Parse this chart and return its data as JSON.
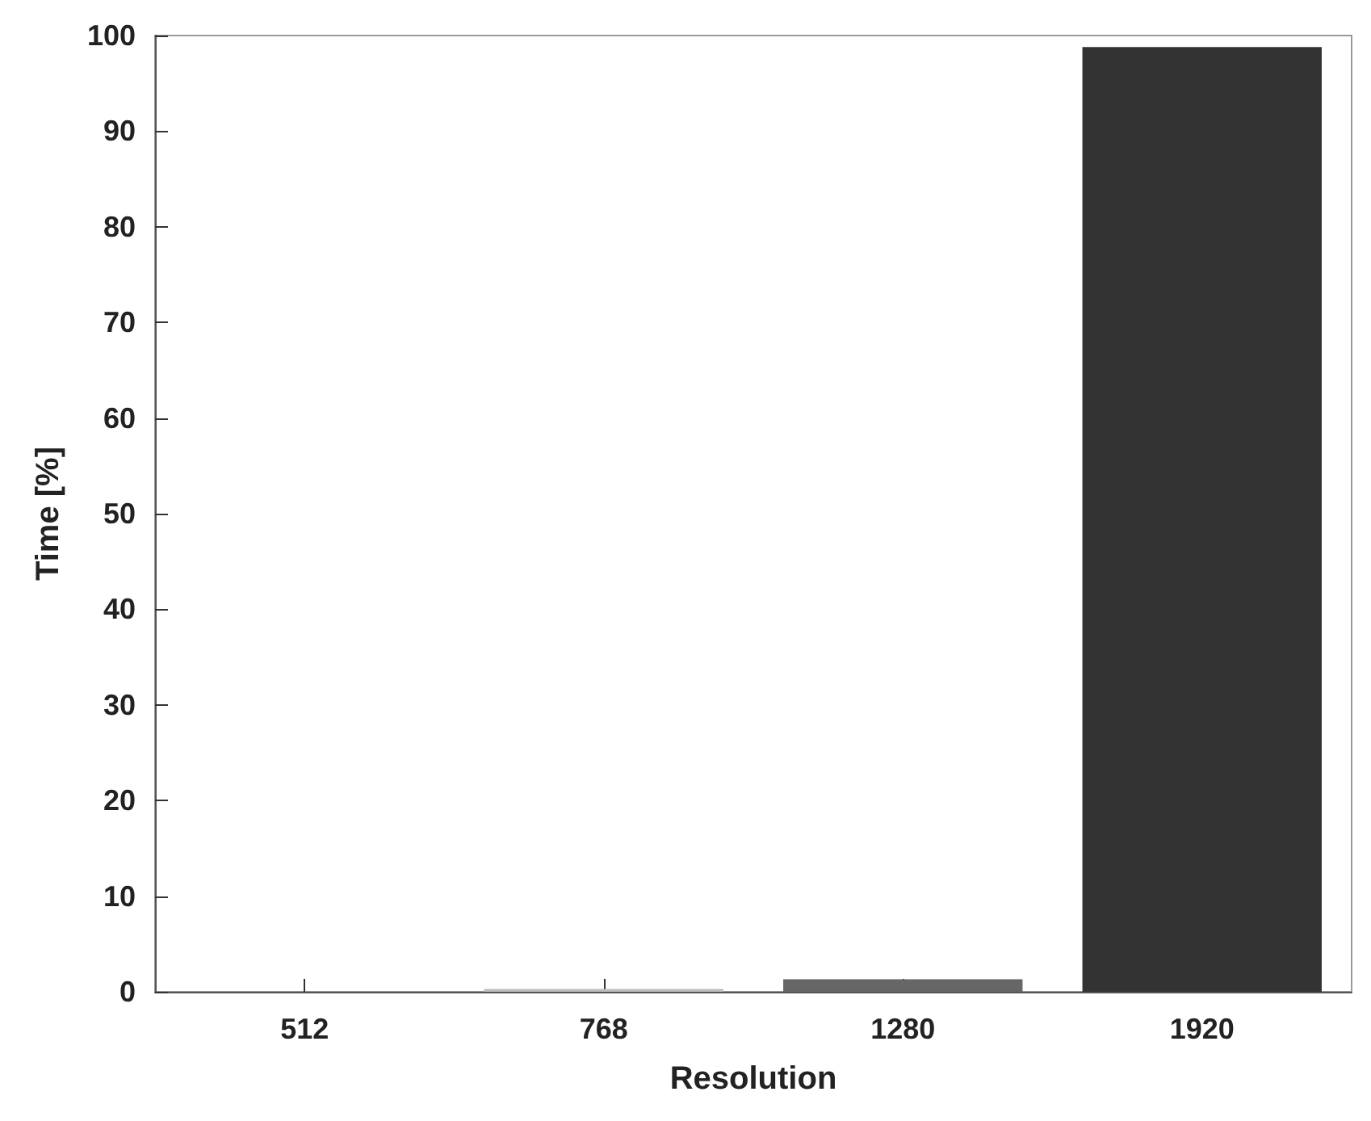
{
  "chart_data": {
    "type": "bar",
    "xlabel": "Resolution",
    "ylabel": "Time [%]",
    "categories": [
      "512",
      "768",
      "1280",
      "1920"
    ],
    "values": [
      0,
      0.3,
      1.3,
      98.8
    ],
    "colors": [
      "#1a1a1a",
      "#bdbdbd",
      "#666666",
      "#333333"
    ],
    "ylim": [
      0,
      100
    ],
    "yticks": [
      0,
      10,
      20,
      30,
      40,
      50,
      60,
      70,
      80,
      90,
      100
    ],
    "grid": false
  }
}
